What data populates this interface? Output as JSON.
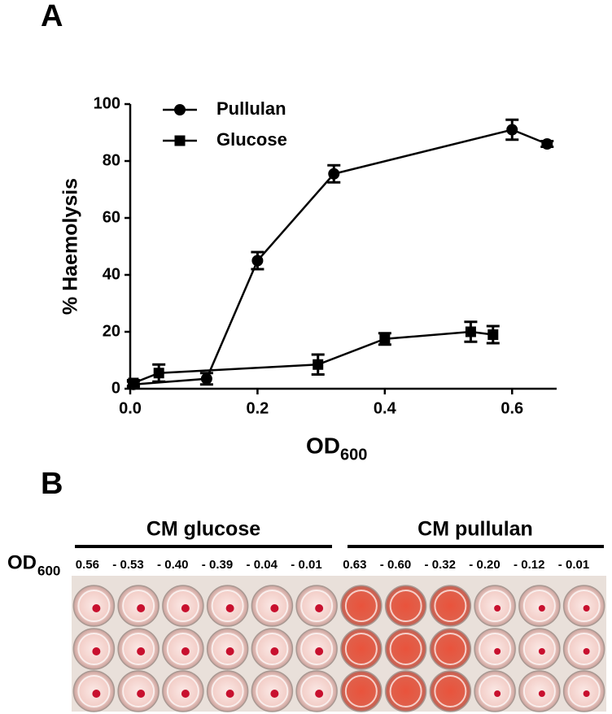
{
  "panel_labels": [
    "A",
    "B"
  ],
  "chart_data": {
    "type": "scatter",
    "x_label": "OD",
    "x_label_sub": "600",
    "y_label": "% Haemolysis",
    "xlim": [
      0,
      0.67
    ],
    "xticks": [
      {
        "value": 0,
        "label": "0.0"
      },
      0.2,
      0.4,
      0.6
    ],
    "ylim": [
      0,
      100
    ],
    "yticks": [
      0,
      20,
      40,
      60,
      80,
      100
    ],
    "legend": "top-left",
    "series": [
      {
        "name": "Pullulan",
        "color": "#000000",
        "marker": "circle",
        "x": [
          0.005,
          0.12,
          0.2,
          0.32,
          0.6,
          0.655
        ],
        "values": [
          1.5,
          3.5,
          45,
          75.5,
          91,
          86
        ],
        "errors": [
          1,
          2,
          3,
          3,
          3.5,
          1
        ]
      },
      {
        "name": "Glucose",
        "color": "#000000",
        "marker": "square",
        "x": [
          0.005,
          0.045,
          0.295,
          0.4,
          0.535,
          0.57
        ],
        "values": [
          2,
          5.5,
          8.5,
          17.5,
          20,
          19
        ],
        "errors": [
          1,
          3,
          3.5,
          2,
          3.5,
          3
        ]
      }
    ]
  },
  "plate": {
    "groups": [
      "CM glucose",
      "CM pullulan"
    ],
    "od_label": "OD",
    "od_label_sub": "600",
    "od_values": [
      "0.56",
      "0.53",
      "0.40",
      "0.39",
      "0.04",
      "0.01",
      "0.63",
      "0.60",
      "0.32",
      "0.20",
      "0.12",
      "0.01"
    ]
  }
}
